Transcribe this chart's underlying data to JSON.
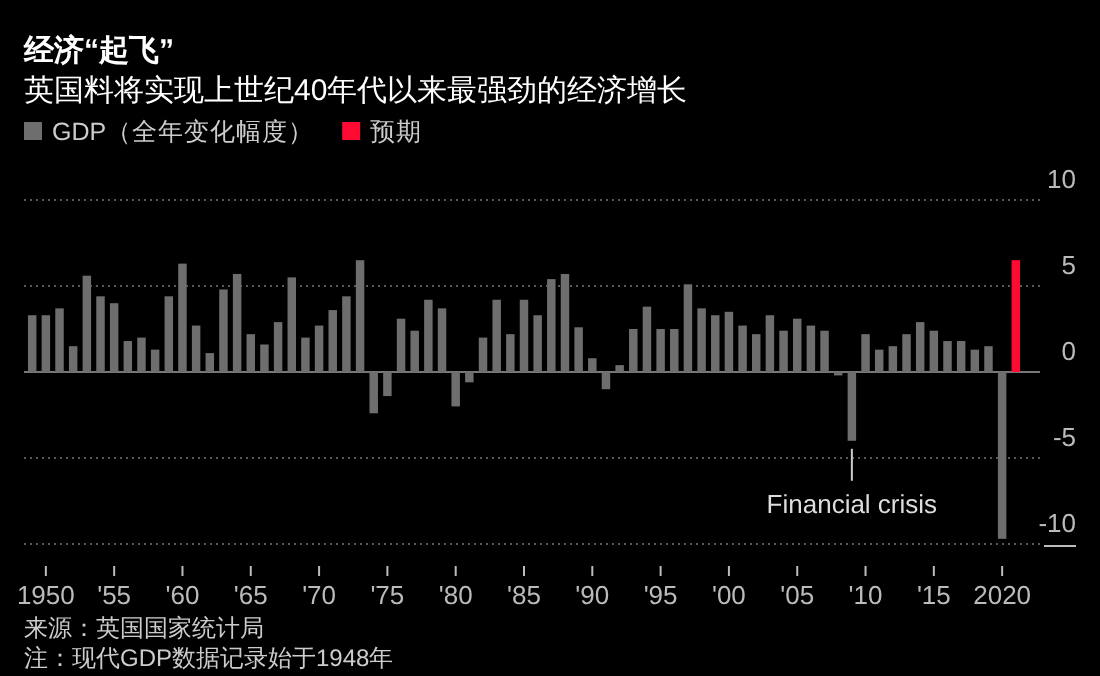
{
  "chart_data": {
    "type": "bar",
    "title": "经济“起飞”",
    "subtitle": "英国料将实现上世纪40年代以来最强劲的经济增长",
    "series": [
      {
        "name": "GDP（全年变化幅度）",
        "color": "#6e6e6e",
        "x": [
          1949,
          1950,
          1951,
          1952,
          1953,
          1954,
          1955,
          1956,
          1957,
          1958,
          1959,
          1960,
          1961,
          1962,
          1963,
          1964,
          1965,
          1966,
          1967,
          1968,
          1969,
          1970,
          1971,
          1972,
          1973,
          1974,
          1975,
          1976,
          1977,
          1978,
          1979,
          1980,
          1981,
          1982,
          1983,
          1984,
          1985,
          1986,
          1987,
          1988,
          1989,
          1990,
          1991,
          1992,
          1993,
          1994,
          1995,
          1996,
          1997,
          1998,
          1999,
          2000,
          2001,
          2002,
          2003,
          2004,
          2005,
          2006,
          2007,
          2008,
          2009,
          2010,
          2011,
          2012,
          2013,
          2014,
          2015,
          2016,
          2017,
          2018,
          2019,
          2020
        ],
        "values": [
          3.3,
          3.3,
          3.7,
          1.5,
          5.6,
          4.4,
          4.0,
          1.8,
          2.0,
          1.3,
          4.4,
          6.3,
          2.7,
          1.1,
          4.8,
          5.7,
          2.2,
          1.6,
          2.9,
          5.5,
          2.0,
          2.7,
          3.6,
          4.4,
          6.5,
          -2.4,
          -1.4,
          3.1,
          2.4,
          4.2,
          3.7,
          -2.0,
          -0.6,
          2.0,
          4.2,
          2.2,
          4.2,
          3.3,
          5.4,
          5.7,
          2.6,
          0.8,
          -1.0,
          0.4,
          2.5,
          3.8,
          2.5,
          2.5,
          5.1,
          3.7,
          3.3,
          3.5,
          2.7,
          2.2,
          3.3,
          2.4,
          3.1,
          2.7,
          2.4,
          -0.2,
          -4.0,
          2.2,
          1.3,
          1.5,
          2.2,
          2.9,
          2.4,
          1.8,
          1.8,
          1.3,
          1.5,
          -9.7
        ]
      },
      {
        "name": "预期",
        "color": "#ff0a33",
        "x": [
          2021
        ],
        "values": [
          6.5
        ]
      }
    ],
    "xlim": [
      1948.4,
      2021.6
    ],
    "xticks": [
      {
        "value": 1950,
        "label": "1950"
      },
      {
        "value": 1955,
        "label": "'55"
      },
      {
        "value": 1960,
        "label": "'60"
      },
      {
        "value": 1965,
        "label": "'65"
      },
      {
        "value": 1970,
        "label": "'70"
      },
      {
        "value": 1975,
        "label": "'75"
      },
      {
        "value": 1980,
        "label": "'80"
      },
      {
        "value": 1985,
        "label": "'85"
      },
      {
        "value": 1990,
        "label": "'90"
      },
      {
        "value": 1995,
        "label": "'95"
      },
      {
        "value": 2000,
        "label": "'00"
      },
      {
        "value": 2005,
        "label": "'05"
      },
      {
        "value": 2010,
        "label": "'10"
      },
      {
        "value": 2015,
        "label": "'15"
      },
      {
        "value": 2020,
        "label": "2020"
      }
    ],
    "ylim": [
      -10,
      10
    ],
    "yticks": [
      -10,
      -5,
      0,
      5,
      10
    ],
    "grid": "y",
    "legend": "top left",
    "annotations": [
      {
        "text": "Financial crisis",
        "x": 2009,
        "y": -4
      },
      "来源：英国国家统计局",
      "注：现代GDP数据记录始于1948年"
    ]
  }
}
